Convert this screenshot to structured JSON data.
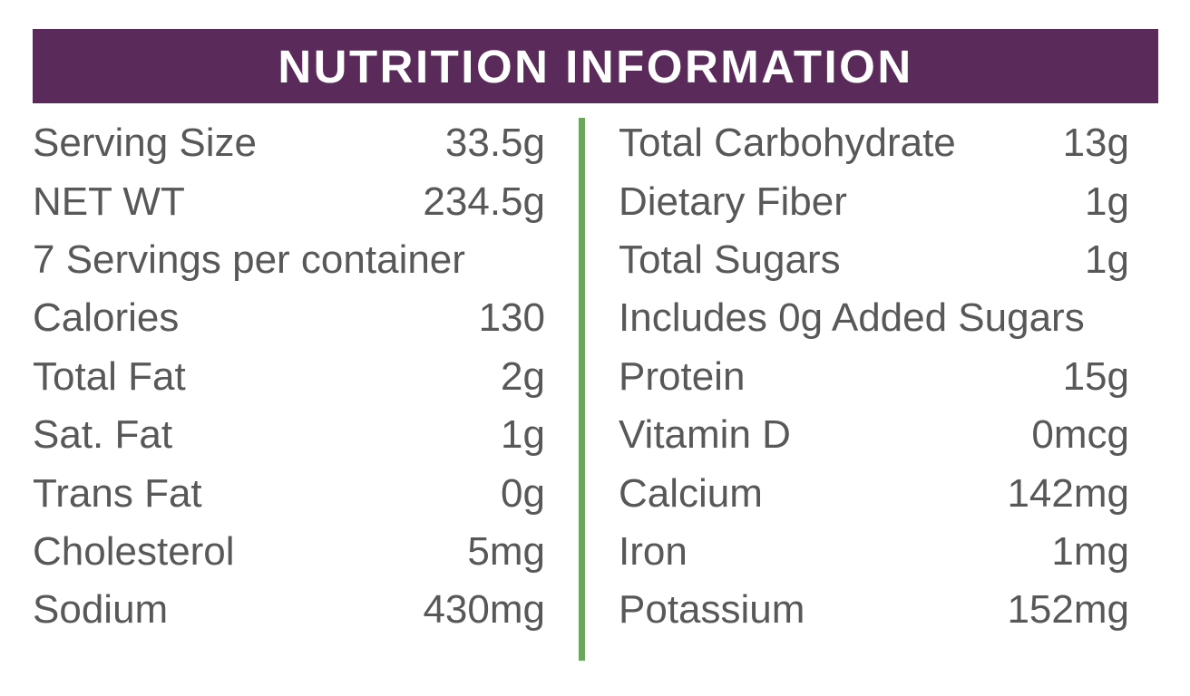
{
  "header": {
    "title": "NUTRITION INFORMATION",
    "bg_color": "#592a5a",
    "text_color": "#ffffff"
  },
  "colors": {
    "divider_green": "#6ba65c",
    "body_text_gray": "#58585a"
  },
  "left_rows": [
    {
      "label": "Serving Size",
      "value": "33.5g"
    },
    {
      "label": "NET WT",
      "value": "234.5g"
    },
    {
      "label": "7 Servings per container",
      "value": ""
    },
    {
      "label": "Calories",
      "value": "130"
    },
    {
      "label": "Total Fat",
      "value": "2g"
    },
    {
      "label": "Sat. Fat",
      "value": "1g"
    },
    {
      "label": "Trans Fat",
      "value": "0g"
    },
    {
      "label": "Cholesterol",
      "value": "5mg"
    },
    {
      "label": "Sodium",
      "value": "430mg"
    }
  ],
  "right_rows": [
    {
      "label": "Total Carbohydrate",
      "value": "13g"
    },
    {
      "label": "Dietary Fiber",
      "value": "1g"
    },
    {
      "label": "Total Sugars",
      "value": "1g"
    },
    {
      "label": "Includes 0g Added Sugars",
      "value": ""
    },
    {
      "label": "Protein",
      "value": "15g"
    },
    {
      "label": "Vitamin D",
      "value": "0mcg"
    },
    {
      "label": "Calcium",
      "value": "142mg"
    },
    {
      "label": "Iron",
      "value": "1mg"
    },
    {
      "label": "Potassium",
      "value": "152mg"
    }
  ]
}
